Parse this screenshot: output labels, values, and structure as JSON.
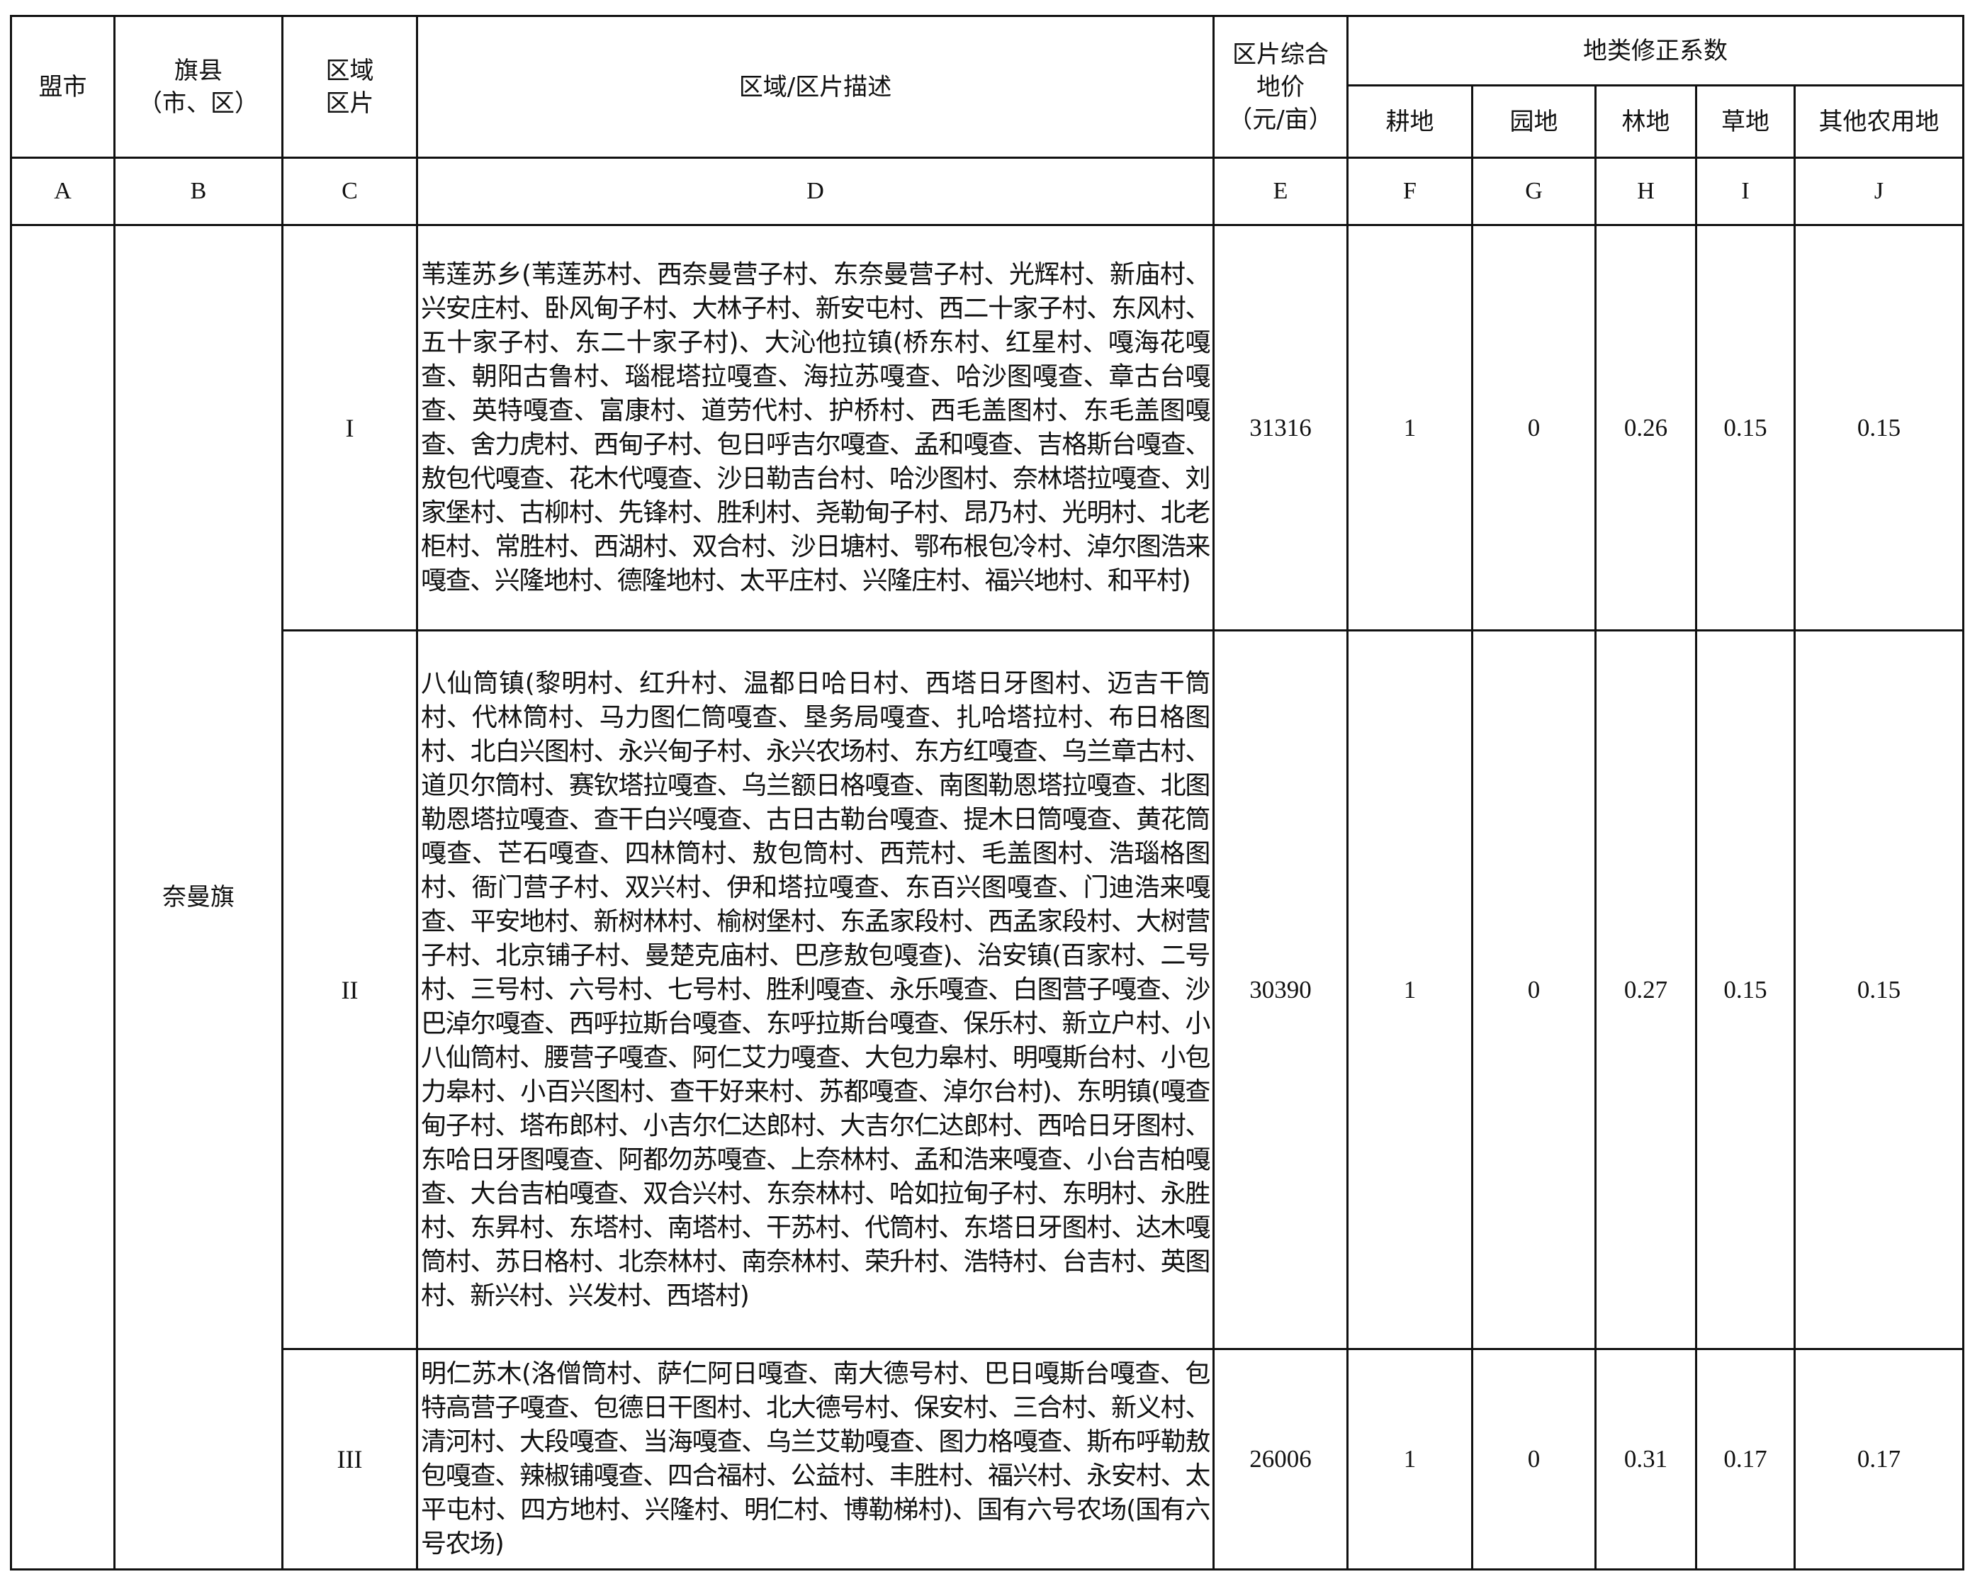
{
  "header": {
    "league_city": "盟市",
    "county": "旗县\n（市、区）",
    "zone": "区域\n区片",
    "description": "区域/区片描述",
    "price": "区片综合\n地价\n（元/亩）",
    "coef_group": "地类修正系数",
    "coef_columns": [
      "耕地",
      "园地",
      "林地",
      "草地",
      "其他农用地"
    ]
  },
  "letters": [
    "A",
    "B",
    "C",
    "D",
    "E",
    "F",
    "G",
    "H",
    "I",
    "J"
  ],
  "county_name": "奈曼旗",
  "rows": [
    {
      "zone": "I",
      "description": "苇莲苏乡(苇莲苏村、西奈曼营子村、东奈曼营子村、光辉村、新庙村、兴安庄村、卧风甸子村、大林子村、新安屯村、西二十家子村、东风村、五十家子村、东二十家子村)、大沁他拉镇(桥东村、红星村、嘎海花嘎查、朝阳古鲁村、瑙棍塔拉嘎查、海拉苏嘎查、哈沙图嘎查、章古台嘎查、英特嘎查、富康村、道劳代村、护桥村、西毛盖图村、东毛盖图嘎查、舍力虎村、西甸子村、包日呼吉尔嘎查、孟和嘎查、吉格斯台嘎查、敖包代嘎查、花木代嘎查、沙日勒吉台村、哈沙图村、奈林塔拉嘎查、刘家堡村、古柳村、先锋村、胜利村、尧勒甸子村、昂乃村、光明村、北老柜村、常胜村、西湖村、双合村、沙日塘村、鄂布根包冷村、淖尔图浩来嘎查、兴隆地村、德隆地村、太平庄村、兴隆庄村、福兴地村、和平村)",
      "price": "31316",
      "coefs": [
        "1",
        "0",
        "0.26",
        "0.15",
        "0.15"
      ]
    },
    {
      "zone": "II",
      "description": "八仙筒镇(黎明村、红升村、温都日哈日村、西塔日牙图村、迈吉干筒村、代林筒村、马力图仁筒嘎查、垦务局嘎查、扎哈塔拉村、布日格图村、北白兴图村、永兴甸子村、永兴农场村、东方红嘎查、乌兰章古村、道贝尔筒村、赛钦塔拉嘎查、乌兰额日格嘎查、南图勒恩塔拉嘎查、北图勒恩塔拉嘎查、查干白兴嘎查、古日古勒台嘎查、提木日筒嘎查、黄花筒嘎查、芒石嘎查、四林筒村、敖包筒村、西荒村、毛盖图村、浩瑙格图村、衙门营子村、双兴村、伊和塔拉嘎查、东百兴图嘎查、门迪浩来嘎查、平安地村、新树林村、榆树堡村、东孟家段村、西孟家段村、大树营子村、北京铺子村、曼楚克庙村、巴彦敖包嘎查)、治安镇(百家村、二号村、三号村、六号村、七号村、胜利嘎查、永乐嘎查、白图营子嘎查、沙巴淖尔嘎查、西呼拉斯台嘎查、东呼拉斯台嘎查、保乐村、新立户村、小八仙筒村、腰营子嘎查、阿仁艾力嘎查、大包力皋村、明嘎斯台村、小包力皋村、小百兴图村、查干好来村、苏都嘎查、淖尔台村)、东明镇(嘎查甸子村、塔布郎村、小吉尔仁达郎村、大吉尔仁达郎村、西哈日牙图村、东哈日牙图嘎查、阿都勿苏嘎查、上奈林村、孟和浩来嘎查、小台吉柏嘎查、大台吉柏嘎查、双合兴村、东奈林村、哈如拉甸子村、东明村、永胜村、东昇村、东塔村、南塔村、干苏村、代筒村、东塔日牙图村、达木嘎筒村、苏日格村、北奈林村、南奈林村、荣升村、浩特村、台吉村、英图村、新兴村、兴发村、西塔村)",
      "price": "30390",
      "coefs": [
        "1",
        "0",
        "0.27",
        "0.15",
        "0.15"
      ]
    },
    {
      "zone": "III",
      "description": "明仁苏木(洛僧筒村、萨仁阿日嘎查、南大德号村、巴日嘎斯台嘎查、包特高营子嘎查、包德日干图村、北大德号村、保安村、三合村、新义村、清河村、大段嘎查、当海嘎查、乌兰艾勒嘎查、图力格嘎查、斯布呼勒敖包嘎查、辣椒铺嘎查、四合福村、公益村、丰胜村、福兴村、永安村、太平屯村、四方地村、兴隆村、明仁村、博勒梯村)、国有六号农场(国有六号农场)",
      "price": "26006",
      "coefs": [
        "1",
        "0",
        "0.31",
        "0.17",
        "0.17"
      ]
    }
  ]
}
